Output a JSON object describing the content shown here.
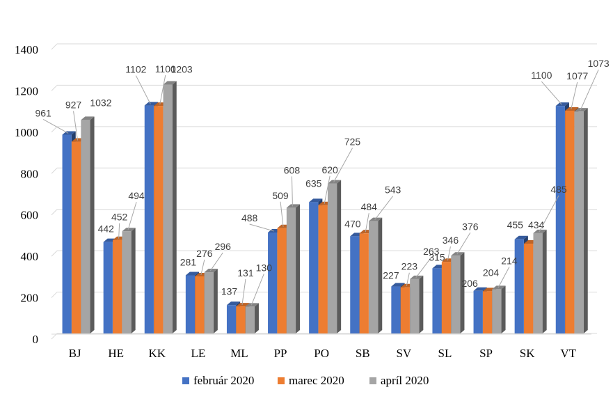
{
  "chart_data": {
    "type": "bar",
    "style": "3d-clustered-column",
    "categories": [
      "BJ",
      "HE",
      "KK",
      "LE",
      "ML",
      "PP",
      "PO",
      "SB",
      "SV",
      "SL",
      "SP",
      "SK",
      "VT"
    ],
    "series": [
      {
        "name": "február 2020",
        "color": "#4472C4",
        "values": [
          961,
          442,
          1102,
          281,
          137,
          488,
          635,
          470,
          227,
          315,
          206,
          455,
          1100
        ]
      },
      {
        "name": "marec 2020",
        "color": "#ED7D31",
        "values": [
          927,
          452,
          1100,
          276,
          131,
          509,
          620,
          484,
          223,
          346,
          204,
          434,
          1077
        ]
      },
      {
        "name": "apríl 2020",
        "color": "#A5A5A5",
        "values": [
          1032,
          494,
          1203,
          296,
          130,
          608,
          725,
          543,
          263,
          376,
          214,
          485,
          1073
        ]
      }
    ],
    "ylim": [
      0,
      1400
    ],
    "yticks": [
      0,
      200,
      400,
      600,
      800,
      1000,
      1200,
      1400
    ],
    "ytick_labels": [
      "0",
      "200",
      "400",
      "600",
      "800",
      "1000",
      "1200",
      "1400"
    ],
    "grid": true,
    "legend_position": "bottom"
  }
}
